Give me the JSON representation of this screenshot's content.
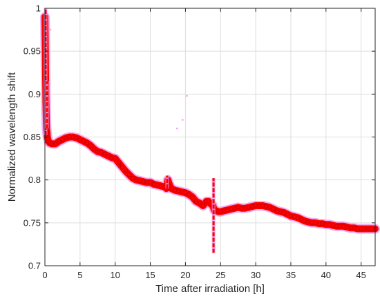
{
  "chart_data": {
    "type": "scatter",
    "title": "",
    "xlabel": "Time after irradiation [h]",
    "ylabel": "Normalized wavelength shift",
    "xlim": [
      0,
      47
    ],
    "ylim": [
      0.7,
      1.0
    ],
    "xticks": [
      0,
      5,
      10,
      15,
      20,
      25,
      30,
      35,
      40,
      45
    ],
    "yticks": [
      0.7,
      0.75,
      0.8,
      0.85,
      0.9,
      0.95,
      1
    ],
    "xtick_labels": [
      "0",
      "5",
      "10",
      "15",
      "20",
      "25",
      "30",
      "35",
      "40",
      "45"
    ],
    "ytick_labels": [
      "0.7",
      "0.75",
      "0.8",
      "0.85",
      "0.9",
      "0.95",
      "1"
    ],
    "grid": true,
    "colors": {
      "marker": "#ff0000",
      "marker_dark": "#b00000",
      "halo": "#f0a0f0",
      "grid": "#dedede",
      "axis": "#262626"
    },
    "series": [
      {
        "x": [
          0.0,
          0.05,
          0.1,
          0.15,
          0.2,
          0.25,
          0.3,
          0.35,
          0.4,
          0.5,
          0.7,
          1,
          1.5,
          2,
          2.5,
          3,
          3.5,
          4,
          4.5,
          5,
          5.5,
          6,
          6.5,
          7,
          7.5,
          8,
          8.5,
          9,
          9.5,
          10,
          10.5,
          11,
          11.5,
          12,
          12.5,
          13,
          13.5,
          14,
          14.5,
          15,
          15.5,
          16,
          16.5,
          17,
          17.3,
          17.5,
          17.8,
          18,
          18.5,
          19,
          19.5,
          20,
          20.5,
          21,
          21.5,
          22,
          22.5,
          23,
          23.3,
          23.6,
          23.9,
          24.1,
          24.4,
          24.7,
          25,
          25.5,
          26,
          26.5,
          27,
          27.5,
          28,
          28.5,
          29,
          29.5,
          30,
          30.5,
          31,
          31.5,
          32,
          32.5,
          33,
          33.5,
          34,
          34.5,
          35,
          35.5,
          36,
          36.5,
          37,
          37.5,
          38,
          38.5,
          39,
          39.5,
          40,
          40.5,
          41,
          41.5,
          42,
          42.5,
          43,
          43.5,
          44,
          44.5,
          45,
          45.5,
          46,
          46.5,
          47
        ],
        "y": [
          0.99,
          0.96,
          0.92,
          0.89,
          0.87,
          0.86,
          0.855,
          0.85,
          0.848,
          0.845,
          0.843,
          0.842,
          0.842,
          0.845,
          0.847,
          0.849,
          0.85,
          0.85,
          0.849,
          0.847,
          0.845,
          0.843,
          0.84,
          0.836,
          0.833,
          0.832,
          0.83,
          0.828,
          0.826,
          0.825,
          0.82,
          0.815,
          0.81,
          0.806,
          0.802,
          0.8,
          0.799,
          0.798,
          0.797,
          0.797,
          0.795,
          0.794,
          0.793,
          0.792,
          0.79,
          0.8,
          0.793,
          0.79,
          0.788,
          0.787,
          0.786,
          0.785,
          0.783,
          0.78,
          0.775,
          0.773,
          0.77,
          0.775,
          0.775,
          0.772,
          0.77,
          0.765,
          0.764,
          0.763,
          0.763,
          0.764,
          0.765,
          0.766,
          0.767,
          0.768,
          0.767,
          0.767,
          0.768,
          0.769,
          0.77,
          0.77,
          0.77,
          0.769,
          0.768,
          0.766,
          0.764,
          0.763,
          0.762,
          0.76,
          0.758,
          0.757,
          0.756,
          0.754,
          0.752,
          0.751,
          0.75,
          0.75,
          0.749,
          0.749,
          0.748,
          0.748,
          0.747,
          0.746,
          0.746,
          0.746,
          0.745,
          0.744,
          0.744,
          0.743,
          0.743,
          0.743,
          0.743,
          0.743,
          0.743
        ]
      }
    ],
    "spikes": [
      {
        "x": 0.1,
        "y_min": 0.852,
        "y_max": 1.0
      },
      {
        "x": 0.3,
        "y_min": 0.86,
        "y_max": 0.915
      },
      {
        "x": 17.4,
        "y_min": 0.79,
        "y_max": 0.805
      },
      {
        "x": 24.0,
        "y_min": 0.715,
        "y_max": 0.802
      }
    ],
    "outliers": [
      {
        "x": 20.2,
        "y": 0.898
      },
      {
        "x": 19.6,
        "y": 0.87
      },
      {
        "x": 18.8,
        "y": 0.86
      },
      {
        "x": 0.8,
        "y": 0.975
      }
    ]
  }
}
